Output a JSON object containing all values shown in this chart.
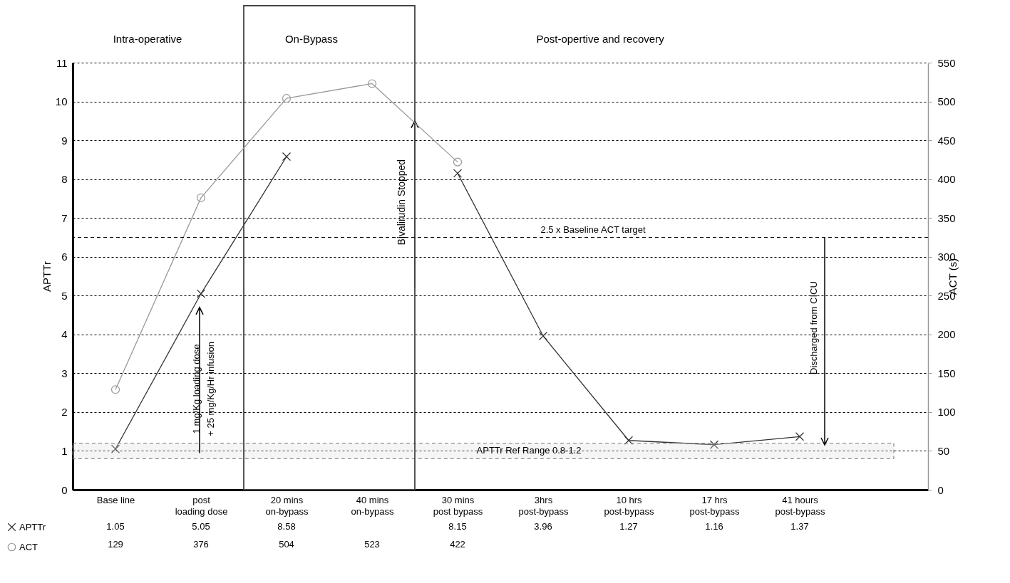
{
  "chart_data": {
    "type": "line",
    "categories": [
      "Base line",
      "post loading dose",
      "20 mins on-bypass",
      "40 mins on-bypass",
      "30 mins post bypass",
      "3hrs post-bypass",
      "10 hrs post-bypass",
      "17 hrs post-bypass",
      "41 hours post-bypass",
      null
    ],
    "ylabel": "APTTr",
    "y2label": "ACT (s)",
    "ylim": [
      0,
      11
    ],
    "yticks": [
      0,
      1,
      2,
      3,
      4,
      5,
      6,
      7,
      8,
      9,
      10,
      11
    ],
    "y2lim": [
      0,
      550
    ],
    "y2ticks": [
      0,
      50,
      100,
      150,
      200,
      250,
      300,
      350,
      400,
      450,
      500,
      550
    ],
    "grid": "y",
    "legend": "bottom left",
    "data_labels": true,
    "line_style": "solid",
    "series": [
      {
        "name": "APTTr",
        "color": "#333333",
        "marker": "cross",
        "values": [
          1.05,
          5.05,
          8.58,
          null,
          8.15,
          3.96,
          1.27,
          1.16,
          1.37,
          null
        ]
      },
      {
        "name": "ACT",
        "color": "#999999",
        "marker": "circle",
        "axis": "y2",
        "values": [
          129,
          376,
          504,
          523,
          422,
          null,
          null,
          null,
          null,
          null
        ]
      }
    ],
    "ref_lines": [
      {
        "axis": "y2",
        "value": 325,
        "label": "2.5 x Baseline ACT target",
        "line_style": "dashed"
      }
    ],
    "bands": [
      {
        "axis": "y",
        "from": 0.8,
        "to": 1.2,
        "label": "APTTr Ref Range 0.8-1.2"
      }
    ],
    "annotations": [
      "Intra-operative",
      "On-Bypass",
      "Post-opertive and recovery",
      "1 mg/Kg loading dose + 25 mg/Kg/Hr infusion",
      "Bivalirudin Stopped",
      "Discharged from CICU"
    ]
  }
}
